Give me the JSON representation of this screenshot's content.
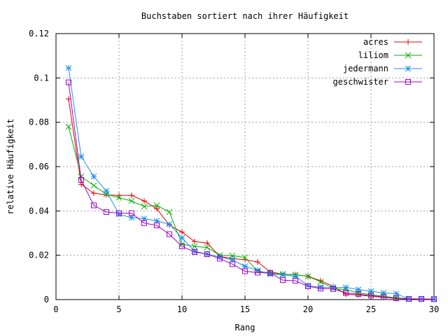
{
  "chart_data": {
    "type": "line",
    "title": "Buchstaben sortiert nach ihrer Häufigkeit",
    "xlabel": "Rang",
    "ylabel": "relative Häufigkeit",
    "xlim": [
      0,
      30
    ],
    "ylim": [
      0,
      0.12
    ],
    "x_ticks": [
      0,
      5,
      10,
      15,
      20,
      25,
      30
    ],
    "y_ticks": [
      0,
      0.02,
      0.04,
      0.06,
      0.08,
      0.1,
      0.12
    ],
    "x_tick_labels": [
      "0",
      "5",
      "10",
      "15",
      "20",
      "25",
      "30"
    ],
    "y_tick_labels": [
      "0",
      "0.02",
      "0.04",
      "0.06",
      "0.08",
      "0.1",
      "0.12"
    ],
    "grid": true,
    "legend_position": "top-right",
    "x": [
      1,
      2,
      3,
      4,
      5,
      6,
      7,
      8,
      9,
      10,
      11,
      12,
      13,
      14,
      15,
      16,
      17,
      18,
      19,
      20,
      21,
      22,
      23,
      24,
      25,
      26,
      27,
      28,
      29,
      30
    ],
    "series": [
      {
        "name": "acres",
        "color": "#e00000",
        "marker": "plus",
        "values": [
          0.0905,
          0.052,
          0.048,
          0.0472,
          0.047,
          0.047,
          0.0445,
          0.041,
          0.0335,
          0.0305,
          0.0262,
          0.0255,
          0.0195,
          0.0185,
          0.018,
          0.017,
          0.0125,
          0.0115,
          0.0112,
          0.0105,
          0.0085,
          0.006,
          0.0025,
          0.002,
          0.0015,
          0.001,
          0.0005,
          0.0003,
          0.0002,
          0.0001
        ]
      },
      {
        "name": "liliom",
        "color": "#00b000",
        "marker": "cross",
        "values": [
          0.078,
          0.0555,
          0.0515,
          0.0475,
          0.046,
          0.0445,
          0.042,
          0.0425,
          0.0395,
          0.025,
          0.024,
          0.0235,
          0.02,
          0.0198,
          0.019,
          0.0128,
          0.012,
          0.0115,
          0.0112,
          0.0105,
          0.008,
          0.005,
          0.0045,
          0.003,
          0.0022,
          0.0015,
          0.0008,
          0.0004,
          0.0003,
          0.0002
        ]
      },
      {
        "name": "jedermann",
        "color": "#1f8fe6",
        "marker": "star",
        "values": [
          0.1045,
          0.0645,
          0.0555,
          0.049,
          0.0385,
          0.037,
          0.0365,
          0.0355,
          0.034,
          0.0278,
          0.0218,
          0.0205,
          0.0192,
          0.018,
          0.015,
          0.0132,
          0.0115,
          0.0112,
          0.0105,
          0.0063,
          0.0055,
          0.0055,
          0.0055,
          0.0045,
          0.0038,
          0.003,
          0.0027,
          0.0003,
          0.0003,
          0.0002
        ]
      },
      {
        "name": "geschwister",
        "color": "#a000d0",
        "marker": "square",
        "values": [
          0.098,
          0.054,
          0.0425,
          0.0395,
          0.039,
          0.039,
          0.0345,
          0.0335,
          0.0295,
          0.024,
          0.0215,
          0.0205,
          0.0185,
          0.016,
          0.0128,
          0.0122,
          0.012,
          0.0088,
          0.0085,
          0.006,
          0.005,
          0.0048,
          0.003,
          0.0025,
          0.0018,
          0.0012,
          0.0006,
          0.0003,
          0.0003,
          0.0002
        ]
      }
    ]
  }
}
